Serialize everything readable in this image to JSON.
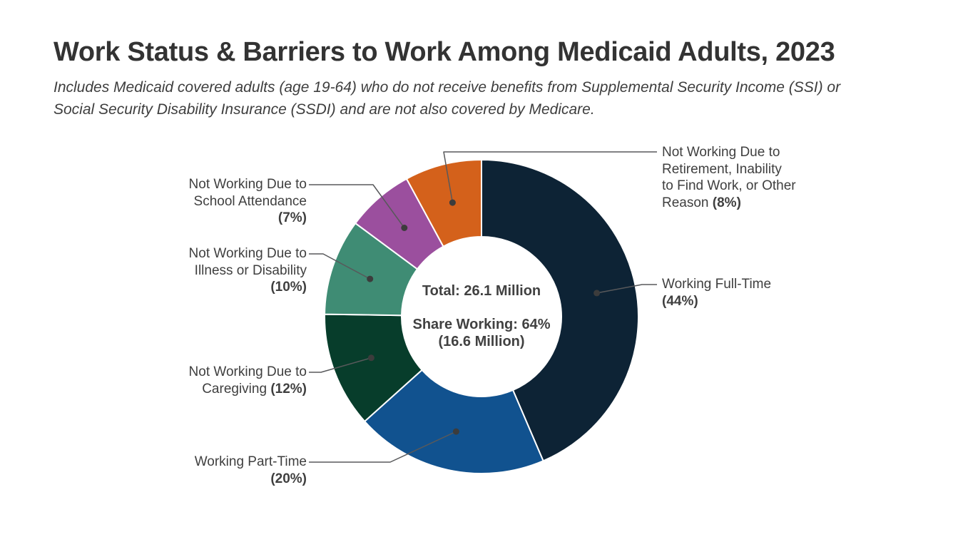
{
  "page": {
    "background": "#ffffff"
  },
  "header": {
    "title": "Work Status & Barriers to Work Among Medicaid Adults, 2023",
    "subtitle": "Includes Medicaid covered adults (age 19-64) who do not receive benefits from Supplemental Security Income (SSI) or Social Security Disability Insurance (SSDI) and are not also covered by Medicare."
  },
  "center": {
    "total_line": "Total: 26.1 Million",
    "share_line1": "Share Working: 64%",
    "share_line2": "(16.6 Million)"
  },
  "chart_data": {
    "type": "pie",
    "subtype": "donut",
    "title": "Work Status & Barriers to Work Among Medicaid Adults, 2023",
    "total_label": "Total: 26.1 Million",
    "share_working_label": "Share Working: 64% (16.6 Million)",
    "units": "percent of Medicaid adults",
    "segments": [
      {
        "id": "fulltime",
        "name": "Working Full-Time",
        "value": 44,
        "color": "#0d2335",
        "pct_text": "(44%)",
        "label_lines": [
          "Working Full-Time",
          "(44%)"
        ]
      },
      {
        "id": "parttime",
        "name": "Working Part-Time",
        "value": 20,
        "color": "#11528f",
        "pct_text": "(20%)",
        "label_lines": [
          "Working Part-Time",
          "(20%)"
        ]
      },
      {
        "id": "caregiving",
        "name": "Not Working Due to Caregiving",
        "value": 12,
        "color": "#073d2b",
        "pct_text": "(12%)",
        "label_lines": [
          "Not Working Due to",
          "Caregiving (12%)"
        ]
      },
      {
        "id": "illness",
        "name": "Not Working Due to Illness or Disability",
        "value": 10,
        "color": "#3f8c74",
        "pct_text": "(10%)",
        "label_lines": [
          "Not Working Due to",
          "Illness or Disability",
          "(10%)"
        ]
      },
      {
        "id": "school",
        "name": "Not Working Due to School Attendance",
        "value": 7,
        "color": "#9b4f9e",
        "pct_text": "(7%)",
        "label_lines": [
          "Not Working Due to",
          "School Attendance",
          "(7%)"
        ]
      },
      {
        "id": "retirement",
        "name": "Not Working Due to Retirement, Inability to Find Work, or Other Reason",
        "value": 8,
        "color": "#d4611b",
        "pct_text": "(8%)",
        "label_lines": [
          "Not Working Due to",
          "Retirement, Inability",
          "to Find Work, or Other",
          "Reason (8%)"
        ]
      }
    ],
    "leader_line_color": "#58595b",
    "leader_dot_color": "#3c3c3c"
  }
}
